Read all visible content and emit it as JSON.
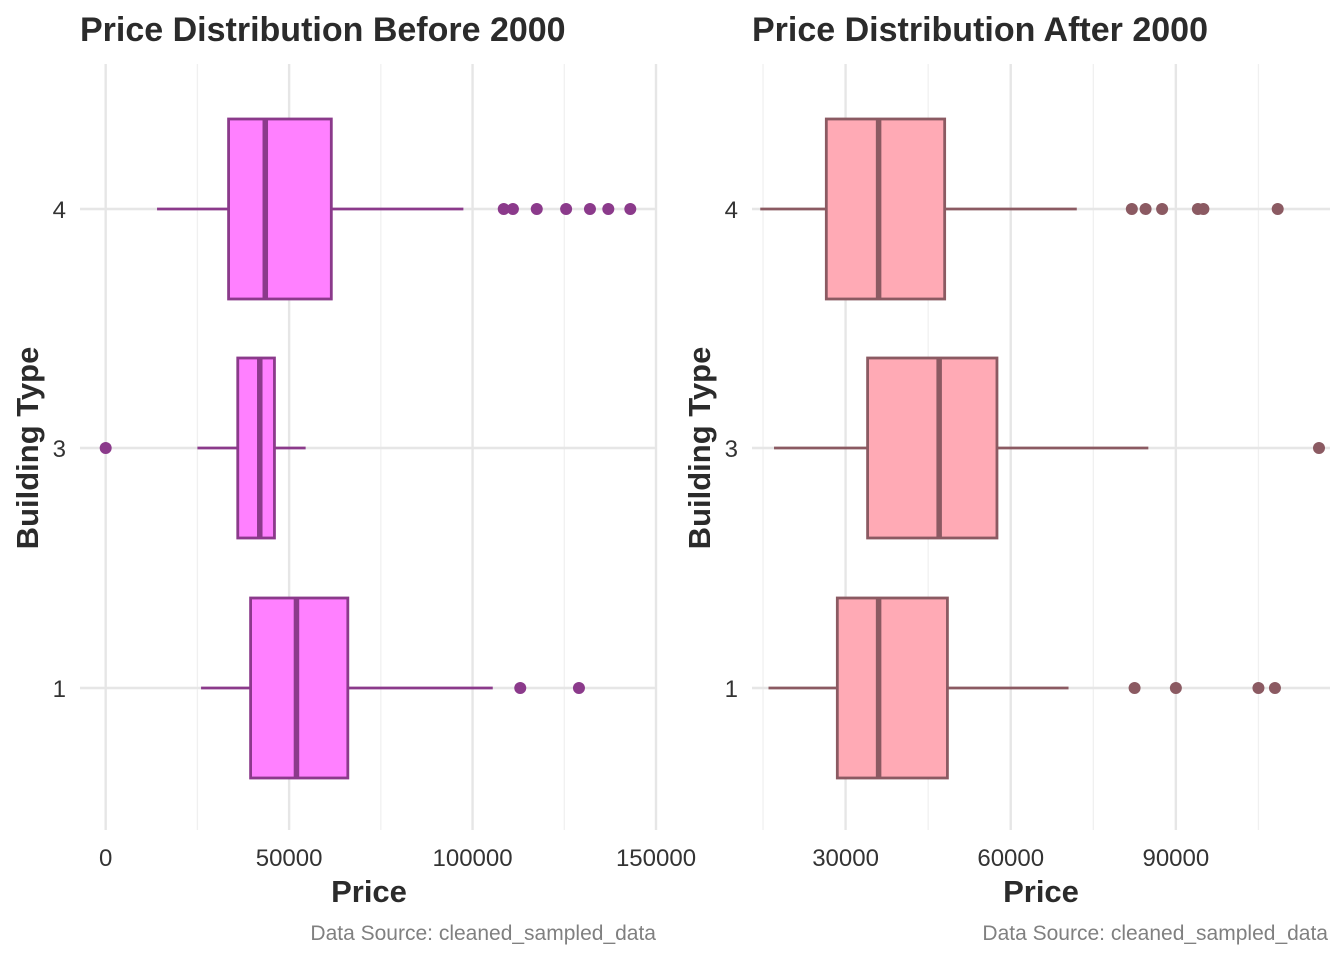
{
  "chart_data": [
    {
      "type": "boxplot",
      "orientation": "horizontal",
      "title": "Price Distribution Before 2000",
      "xlabel": "Price",
      "ylabel": "Building Type",
      "caption": "Data Source: cleaned_sampled_data",
      "categories": [
        "1",
        "3",
        "4"
      ],
      "x_ticks": [
        0,
        50000,
        100000,
        150000
      ],
      "x_tick_labels": [
        "0",
        "50000",
        "100000",
        "150000"
      ],
      "xlim": [
        -7000,
        150000
      ],
      "grid": true,
      "fill_color": "#ff80ff",
      "line_color": "#8b3a8b",
      "boxes": [
        {
          "category": "1",
          "whisker_low": 26000,
          "q1": 39500,
          "median": 52000,
          "q3": 66000,
          "whisker_high": 105500,
          "outliers": [
            113000,
            129000
          ]
        },
        {
          "category": "3",
          "whisker_low": 25000,
          "q1": 36000,
          "median": 42000,
          "q3": 46000,
          "whisker_high": 54500,
          "outliers": [
            0
          ]
        },
        {
          "category": "4",
          "whisker_low": 14000,
          "q1": 33500,
          "median": 43500,
          "q3": 61500,
          "whisker_high": 97500,
          "outliers": [
            108500,
            111000,
            117500,
            125500,
            132000,
            137000,
            143000
          ]
        }
      ]
    },
    {
      "type": "boxplot",
      "orientation": "horizontal",
      "title": "Price Distribution After 2000",
      "xlabel": "Price",
      "ylabel": "Building Type",
      "caption": "Data Source: cleaned_sampled_data",
      "categories": [
        "1",
        "3",
        "4"
      ],
      "x_ticks": [
        30000,
        60000,
        90000
      ],
      "x_tick_labels": [
        "30000",
        "60000",
        "90000"
      ],
      "xlim": [
        13000,
        118000
      ],
      "grid": true,
      "fill_color": "#ffaab5",
      "line_color": "#8b5a62",
      "boxes": [
        {
          "category": "1",
          "whisker_low": 16000,
          "q1": 28500,
          "median": 36000,
          "q3": 48500,
          "whisker_high": 70500,
          "outliers": [
            82500,
            90000,
            105000,
            108000
          ]
        },
        {
          "category": "3",
          "whisker_low": 17000,
          "q1": 34000,
          "median": 47000,
          "q3": 57500,
          "whisker_high": 85000,
          "outliers": [
            116000
          ]
        },
        {
          "category": "4",
          "whisker_low": 14500,
          "q1": 26500,
          "median": 36000,
          "q3": 48000,
          "whisker_high": 72000,
          "outliers": [
            82000,
            84500,
            87500,
            94000,
            95000,
            108500
          ]
        }
      ]
    }
  ]
}
